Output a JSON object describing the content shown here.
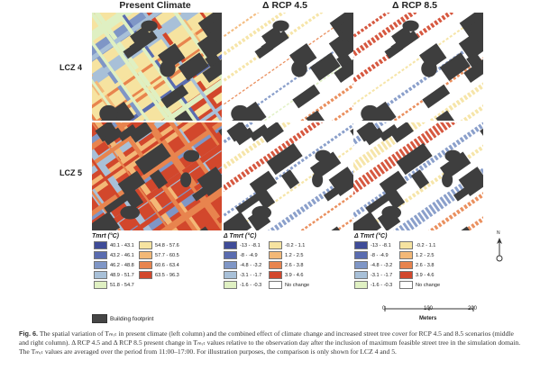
{
  "columns": [
    "Present Climate",
    "Δ RCP 4.5",
    "Δ RCP 8.5"
  ],
  "rows": [
    "LCZ 4",
    "LCZ 5"
  ],
  "legend_present": {
    "title": "Tmrt (°C)",
    "items": [
      {
        "label": "40.1 - 43.1",
        "color": "#3f4c98"
      },
      {
        "label": "43.2 - 46.1",
        "color": "#5a6cb0"
      },
      {
        "label": "46.2 - 48.8",
        "color": "#7f96c6"
      },
      {
        "label": "48.9 - 51.7",
        "color": "#a8c0d8"
      },
      {
        "label": "51.8 - 54.7",
        "color": "#dff0c2"
      },
      {
        "label": "54.8 - 57.6",
        "color": "#f6e3a0"
      },
      {
        "label": "57.7 - 60.5",
        "color": "#f3b877"
      },
      {
        "label": "60.6 - 63.4",
        "color": "#e8844e"
      },
      {
        "label": "63.5 - 96.3",
        "color": "#d2472c"
      }
    ]
  },
  "legend_delta": {
    "title": "Δ Tmrt (°C)",
    "items": [
      {
        "label": "-13 - -8.1",
        "color": "#3f4c98"
      },
      {
        "label": "-8 - -4.9",
        "color": "#5a6cb0"
      },
      {
        "label": "-4.8 - -3.2",
        "color": "#7f96c6"
      },
      {
        "label": "-3.1 - -1.7",
        "color": "#a8c0d8"
      },
      {
        "label": "-1.6 - -0.3",
        "color": "#dff0c2"
      },
      {
        "label": "-0.2 - 1.1",
        "color": "#f6e3a0"
      },
      {
        "label": "1.2 - 2.5",
        "color": "#f3b877"
      },
      {
        "label": "2.6 - 3.8",
        "color": "#e8844e"
      },
      {
        "label": "3.9 - 4.6",
        "color": "#d2472c"
      },
      {
        "label": "No change",
        "color": "#ffffff"
      }
    ]
  },
  "building_footprint": "Building footprint",
  "north_label": "N",
  "scale_bar": {
    "ticks": [
      "0",
      "100",
      "200"
    ],
    "unit": "Meters"
  },
  "caption": {
    "label": "Fig. 6.",
    "text": "The spatial variation of Tₘᵣₜ in present climate (left column) and the combined effect of climate change and increased street tree cover for RCP 4.5 and 8.5 scenarios (middle and right column). Δ RCP 4.5 and Δ RCP 8.5 present change in Tₘᵣₜ values relative to the observation day after the inclusion of maximum feasible street tree in the simulation domain. The Tₘᵣₜ values are averaged over the period from 11:00–17:00. For illustration purposes, the comparison is only shown for LCZ 4 and 5."
  }
}
